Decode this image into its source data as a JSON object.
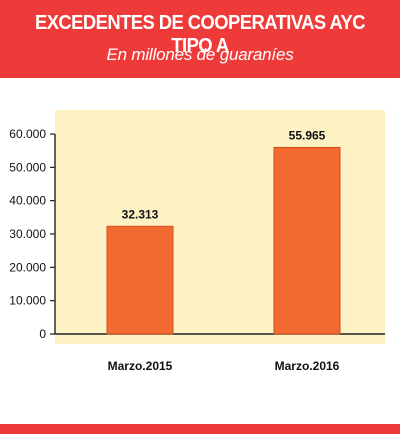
{
  "header": {
    "title": "EXCEDENTES DE COOPERATIVAS AYC TIPO A",
    "subtitle": "En millones de guaraníes"
  },
  "colors": {
    "header_red": "#ee3b3a",
    "plot_background": "#fdf2c4",
    "bar_fill": "#f26a30",
    "bar_edge": "#d04f1c"
  },
  "chart_data": {
    "type": "bar",
    "title": "EXCEDENTES DE COOPERATIVAS AYC TIPO A",
    "subtitle": "En millones de guaraníes",
    "categories": [
      "Marzo.2015",
      "Marzo.2016"
    ],
    "values": [
      32313,
      55965
    ],
    "value_labels": [
      "32.313",
      "55.965"
    ],
    "ylim": [
      0,
      60000
    ],
    "yticks": [
      0,
      10000,
      20000,
      30000,
      40000,
      50000,
      60000
    ],
    "ytick_labels": [
      "0",
      "10.000",
      "20.000",
      "30.000",
      "40.000",
      "50.000",
      "60.000"
    ],
    "xlabel": "",
    "ylabel": "",
    "grid": false,
    "legend": "none"
  }
}
